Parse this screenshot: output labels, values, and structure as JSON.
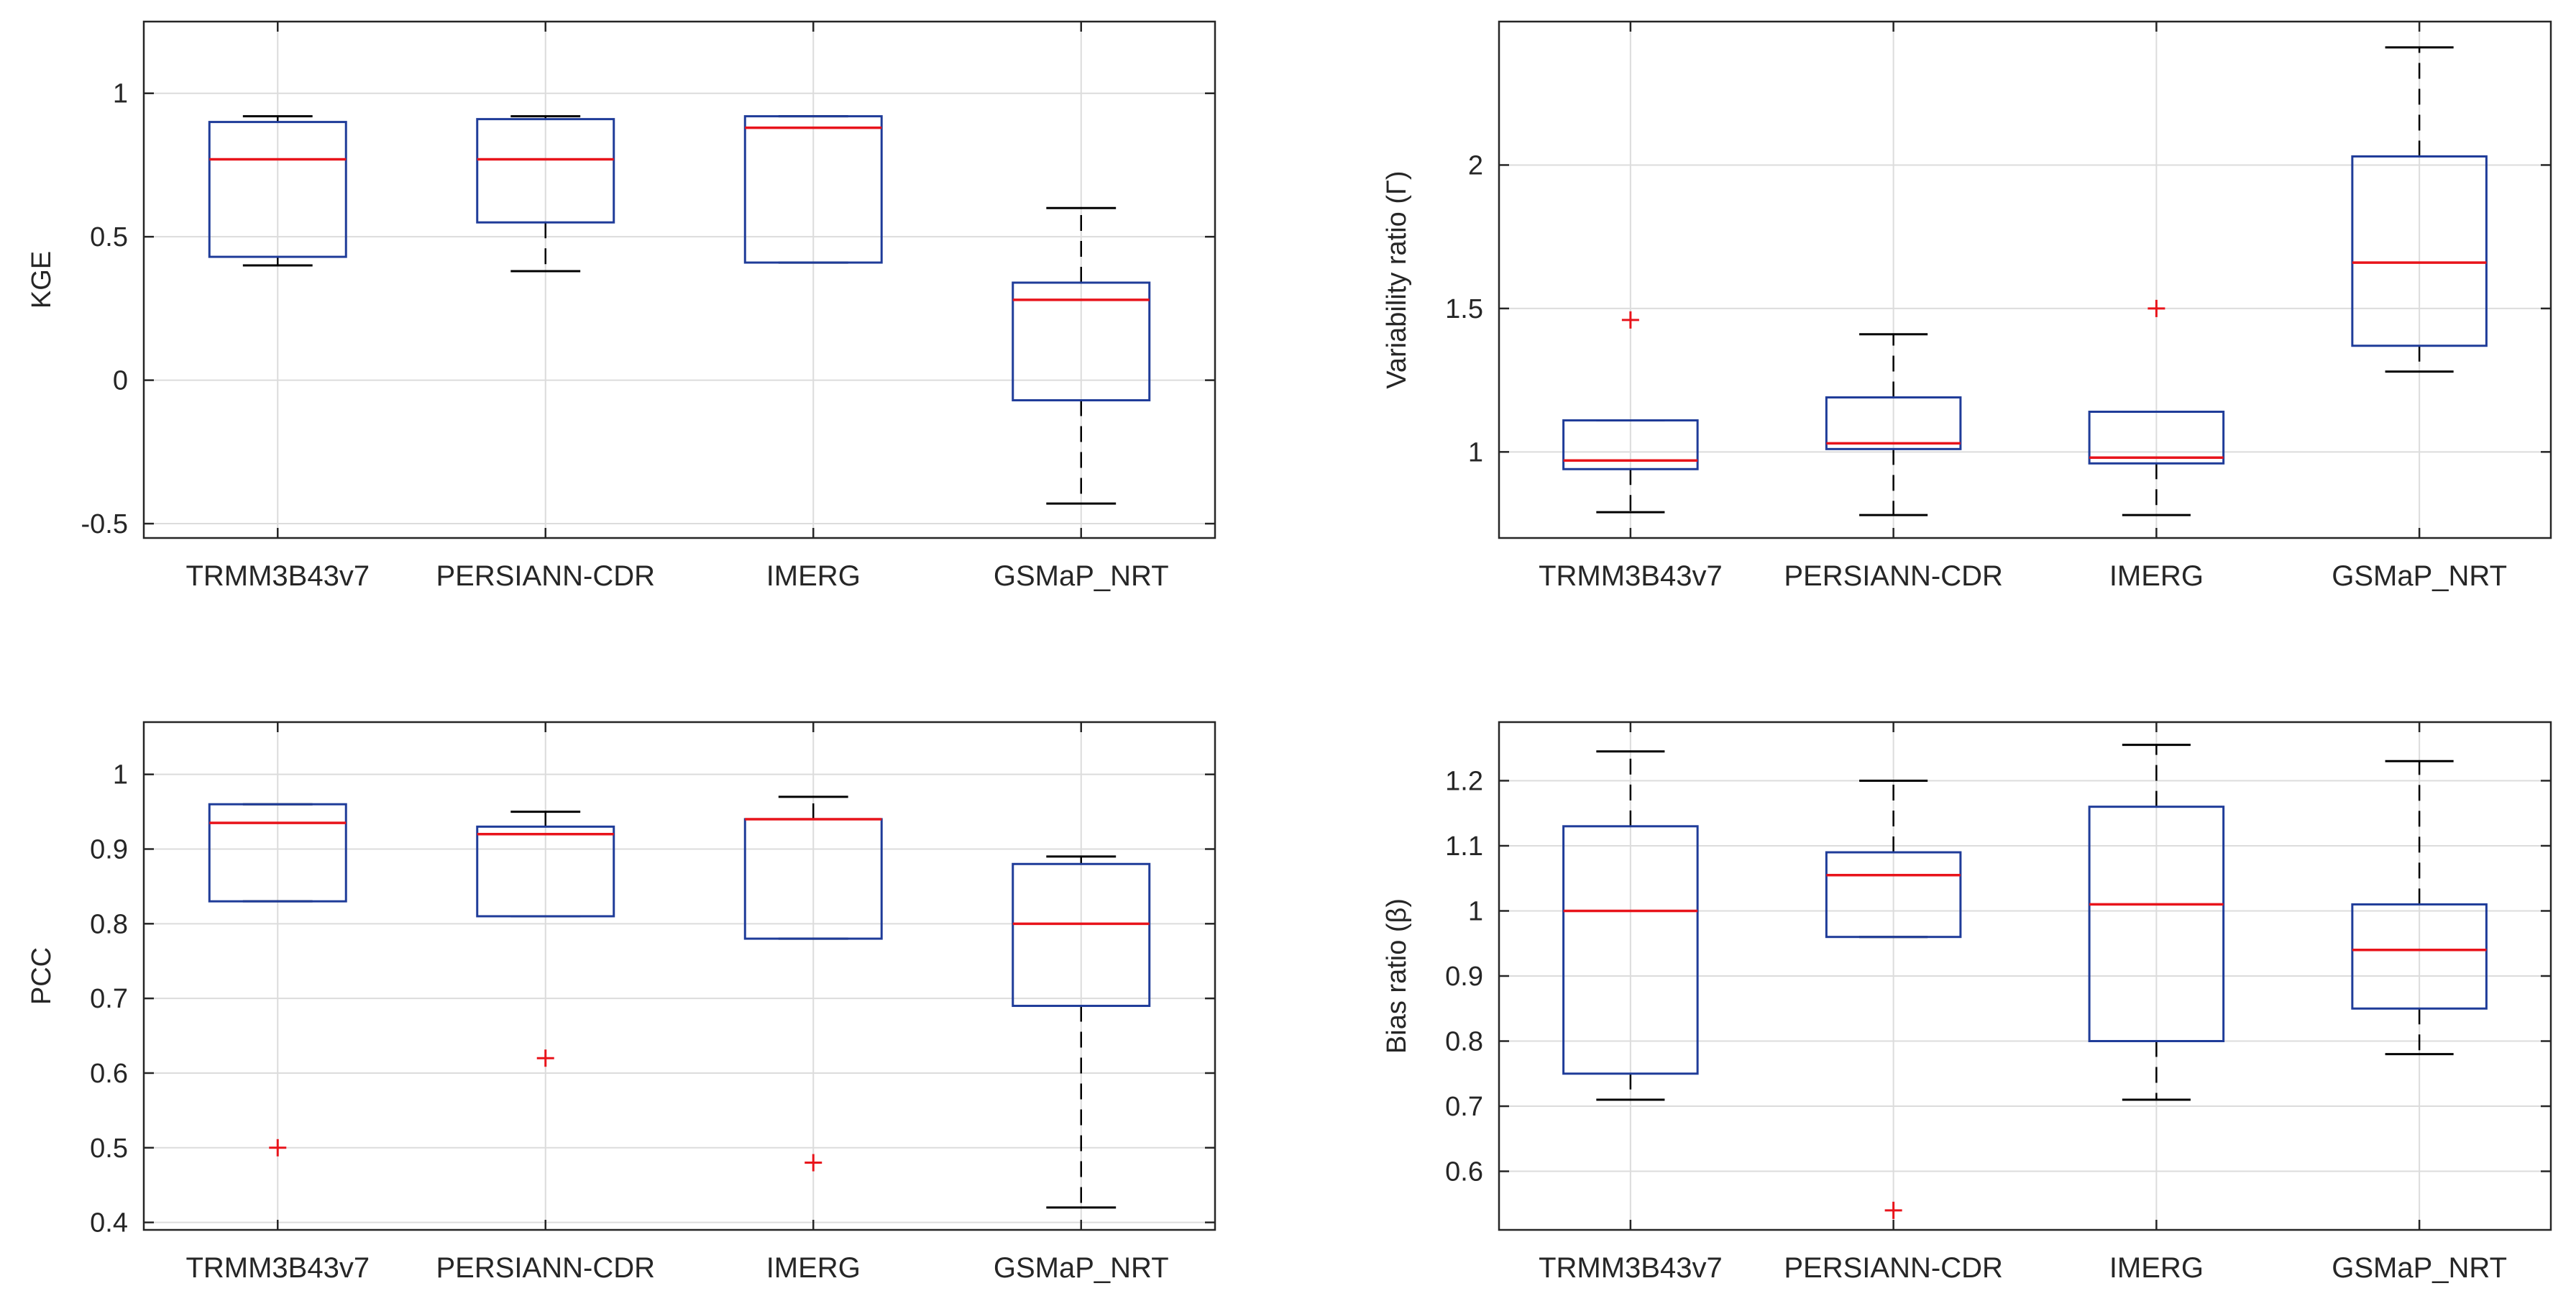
{
  "chart_data": [
    {
      "type": "boxplot",
      "id": "kge",
      "ylabel": "KGE",
      "ylim": [
        -0.55,
        1.25
      ],
      "yticks": [
        -0.5,
        0,
        0.5,
        1
      ],
      "ytick_labels": [
        "-0.5",
        "0",
        "0.5",
        "1"
      ],
      "grid": true,
      "categories": [
        "TRMM3B43v7",
        "PERSIANN-CDR",
        "IMERG",
        "GSMaP_NRT"
      ],
      "boxes": [
        {
          "whisker_low": 0.4,
          "q1": 0.43,
          "median": 0.77,
          "q3": 0.9,
          "whisker_high": 0.92,
          "outliers": []
        },
        {
          "whisker_low": 0.38,
          "q1": 0.55,
          "median": 0.77,
          "q3": 0.91,
          "whisker_high": 0.92,
          "outliers": []
        },
        {
          "whisker_low": 0.41,
          "q1": 0.41,
          "median": 0.88,
          "q3": 0.92,
          "whisker_high": 0.92,
          "outliers": []
        },
        {
          "whisker_low": -0.43,
          "q1": -0.07,
          "median": 0.28,
          "q3": 0.34,
          "whisker_high": 0.6,
          "outliers": []
        }
      ]
    },
    {
      "type": "boxplot",
      "id": "variability",
      "ylabel": "Variability ratio (Γ)",
      "ylim": [
        0.7,
        2.5
      ],
      "yticks": [
        1,
        1.5,
        2
      ],
      "ytick_labels": [
        "1",
        "1.5",
        "2"
      ],
      "grid": true,
      "categories": [
        "TRMM3B43v7",
        "PERSIANN-CDR",
        "IMERG",
        "GSMaP_NRT"
      ],
      "boxes": [
        {
          "whisker_low": 0.79,
          "q1": 0.94,
          "median": 0.97,
          "q3": 1.11,
          "whisker_high": 1.11,
          "outliers": [
            1.46
          ]
        },
        {
          "whisker_low": 0.78,
          "q1": 1.01,
          "median": 1.03,
          "q3": 1.19,
          "whisker_high": 1.41,
          "outliers": []
        },
        {
          "whisker_low": 0.78,
          "q1": 0.96,
          "median": 0.98,
          "q3": 1.14,
          "whisker_high": 1.14,
          "outliers": [
            1.5
          ]
        },
        {
          "whisker_low": 1.28,
          "q1": 1.37,
          "median": 1.66,
          "q3": 2.03,
          "whisker_high": 2.41,
          "outliers": []
        }
      ]
    },
    {
      "type": "boxplot",
      "id": "pcc",
      "ylabel": "PCC",
      "ylim": [
        0.39,
        1.07
      ],
      "yticks": [
        0.4,
        0.5,
        0.6,
        0.7,
        0.8,
        0.9,
        1
      ],
      "ytick_labels": [
        "0.4",
        "0.5",
        "0.6",
        "0.7",
        "0.8",
        "0.9",
        "1"
      ],
      "grid": true,
      "categories": [
        "TRMM3B43v7",
        "PERSIANN-CDR",
        "IMERG",
        "GSMaP_NRT"
      ],
      "boxes": [
        {
          "whisker_low": 0.83,
          "q1": 0.83,
          "median": 0.935,
          "q3": 0.96,
          "whisker_high": 0.96,
          "outliers": [
            0.5
          ]
        },
        {
          "whisker_low": 0.81,
          "q1": 0.81,
          "median": 0.92,
          "q3": 0.93,
          "whisker_high": 0.95,
          "outliers": [
            0.62
          ]
        },
        {
          "whisker_low": 0.78,
          "q1": 0.78,
          "median": 0.94,
          "q3": 0.94,
          "whisker_high": 0.97,
          "outliers": [
            0.48
          ]
        },
        {
          "whisker_low": 0.42,
          "q1": 0.69,
          "median": 0.8,
          "q3": 0.88,
          "whisker_high": 0.89,
          "outliers": []
        }
      ]
    },
    {
      "type": "boxplot",
      "id": "bias",
      "ylabel": "Bias ratio (β)",
      "ylim": [
        0.51,
        1.29
      ],
      "yticks": [
        0.6,
        0.7,
        0.8,
        0.9,
        1,
        1.1,
        1.2
      ],
      "ytick_labels": [
        "0.6",
        "0.7",
        "0.8",
        "0.9",
        "1",
        "1.1",
        "1.2"
      ],
      "grid": true,
      "categories": [
        "TRMM3B43v7",
        "PERSIANN-CDR",
        "IMERG",
        "GSMaP_NRT"
      ],
      "boxes": [
        {
          "whisker_low": 0.71,
          "q1": 0.75,
          "median": 1.0,
          "q3": 1.13,
          "whisker_high": 1.245,
          "outliers": []
        },
        {
          "whisker_low": 0.96,
          "q1": 0.96,
          "median": 1.055,
          "q3": 1.09,
          "whisker_high": 1.2,
          "outliers": [
            0.54
          ]
        },
        {
          "whisker_low": 0.71,
          "q1": 0.8,
          "median": 1.01,
          "q3": 1.16,
          "whisker_high": 1.255,
          "outliers": []
        },
        {
          "whisker_low": 0.78,
          "q1": 0.85,
          "median": 0.94,
          "q3": 1.01,
          "whisker_high": 1.23,
          "outliers": []
        }
      ]
    }
  ],
  "colors": {
    "box": "#1f3c99",
    "median": "#e8141b",
    "whisker": "#000000",
    "outlier": "#e8141b",
    "grid": "#dcdcdc",
    "axis": "#262626"
  }
}
